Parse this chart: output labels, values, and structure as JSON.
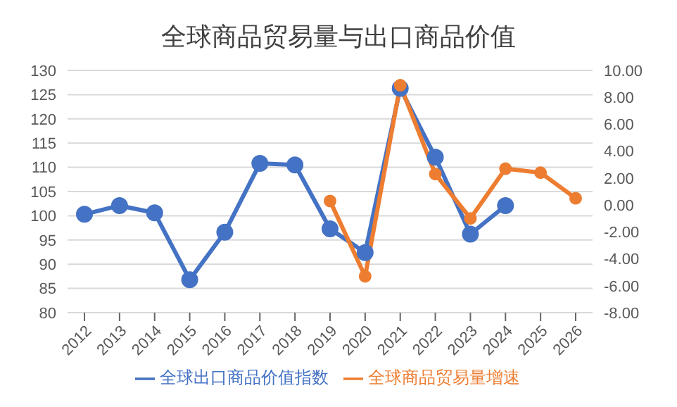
{
  "chart_data": {
    "type": "line",
    "title": "全球商品贸易量与出口商品价值",
    "categories": [
      "2012",
      "2013",
      "2014",
      "2015",
      "2016",
      "2017",
      "2018",
      "2019",
      "2020",
      "2021",
      "2022",
      "2023",
      "2024",
      "2025",
      "2026"
    ],
    "series": [
      {
        "name": "全球出口商品价值指数",
        "color": "#4472c4",
        "values": [
          100.3,
          102.1,
          100.6,
          86.8,
          96.6,
          110.8,
          110.5,
          97.3,
          92.4,
          126.3,
          112.1,
          96.2,
          102.1,
          null,
          null
        ]
      },
      {
        "name": "全球商品贸易量增速",
        "color": "#ed7d31",
        "axis": "y2",
        "values": [
          null,
          null,
          null,
          null,
          null,
          null,
          null,
          0.3,
          -5.3,
          8.9,
          2.3,
          -1.0,
          2.7,
          2.4,
          0.5
        ]
      }
    ],
    "ylim": [
      80,
      130
    ],
    "yticks": [
      80,
      85,
      90,
      95,
      100,
      105,
      110,
      115,
      120,
      125,
      130
    ],
    "y2lim": [
      -8,
      10
    ],
    "y2ticks": [
      {
        "value": -8,
        "label": "-8.00"
      },
      {
        "value": -6,
        "label": "-6.00"
      },
      {
        "value": -4,
        "label": "-4.00"
      },
      {
        "value": -2,
        "label": "-2.00"
      },
      {
        "value": 0,
        "label": "0.00"
      },
      {
        "value": 2,
        "label": "2.00"
      },
      {
        "value": 4,
        "label": "4.00"
      },
      {
        "value": 6,
        "label": "6.00"
      },
      {
        "value": 8,
        "label": "8.00"
      },
      {
        "value": 10,
        "label": "10.00"
      }
    ],
    "grid": "y",
    "legend": "bottom",
    "marker": "circle"
  }
}
